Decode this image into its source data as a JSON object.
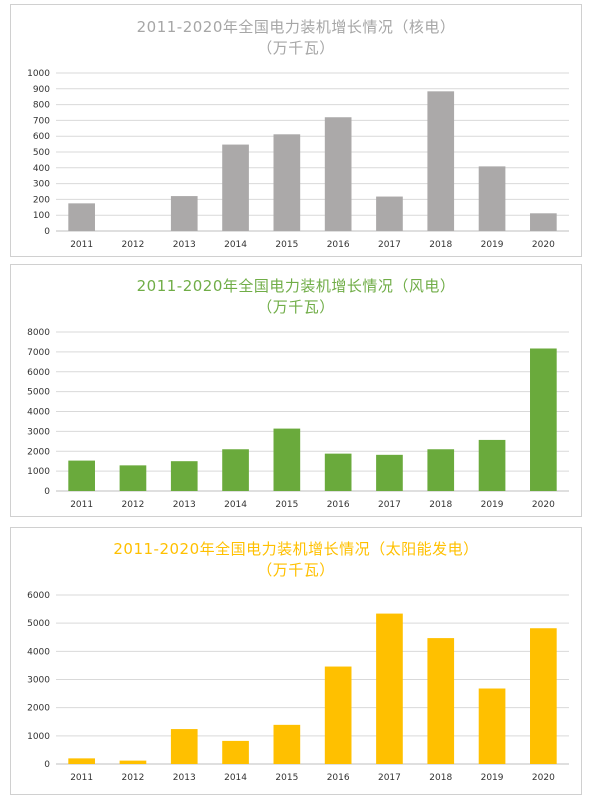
{
  "grid_color": "#d9d9d9",
  "chart_data": [
    {
      "type": "bar",
      "title": "2011-2020年全国电力装机增长情况（核电）",
      "subtitle": "（万千瓦）",
      "color": "#aba9a9",
      "title_color": "#a6a6a6",
      "categories": [
        "2011",
        "2012",
        "2013",
        "2014",
        "2015",
        "2016",
        "2017",
        "2018",
        "2019",
        "2020"
      ],
      "values": [
        175,
        0,
        221,
        547,
        612,
        720,
        218,
        884,
        409,
        112
      ],
      "ylim": [
        0,
        1000
      ],
      "yticks": [
        0,
        100,
        200,
        300,
        400,
        500,
        600,
        700,
        800,
        900,
        1000
      ],
      "grid": true
    },
    {
      "type": "bar",
      "title": "2011-2020年全国电力装机增长情况（风电）",
      "subtitle": "（万千瓦）",
      "color": "#6aaa3c",
      "title_color": "#70ad47",
      "categories": [
        "2011",
        "2012",
        "2013",
        "2014",
        "2015",
        "2016",
        "2017",
        "2018",
        "2019",
        "2020"
      ],
      "values": [
        1530,
        1290,
        1500,
        2100,
        3140,
        1880,
        1820,
        2100,
        2570,
        7170
      ],
      "ylim": [
        0,
        8000
      ],
      "yticks": [
        0,
        1000,
        2000,
        3000,
        4000,
        5000,
        6000,
        7000,
        8000
      ],
      "grid": true
    },
    {
      "type": "bar",
      "title": "2011-2020年全国电力装机增长情况（太阳能发电）",
      "subtitle": "（万千瓦）",
      "color": "#ffc000",
      "title_color": "#ffc000",
      "categories": [
        "2011",
        "2012",
        "2013",
        "2014",
        "2015",
        "2016",
        "2017",
        "2018",
        "2019",
        "2020"
      ],
      "values": [
        200,
        120,
        1240,
        820,
        1390,
        3460,
        5340,
        4470,
        2680,
        4820
      ],
      "ylim": [
        0,
        6000
      ],
      "yticks": [
        0,
        1000,
        2000,
        3000,
        4000,
        5000,
        6000
      ],
      "grid": true
    }
  ]
}
